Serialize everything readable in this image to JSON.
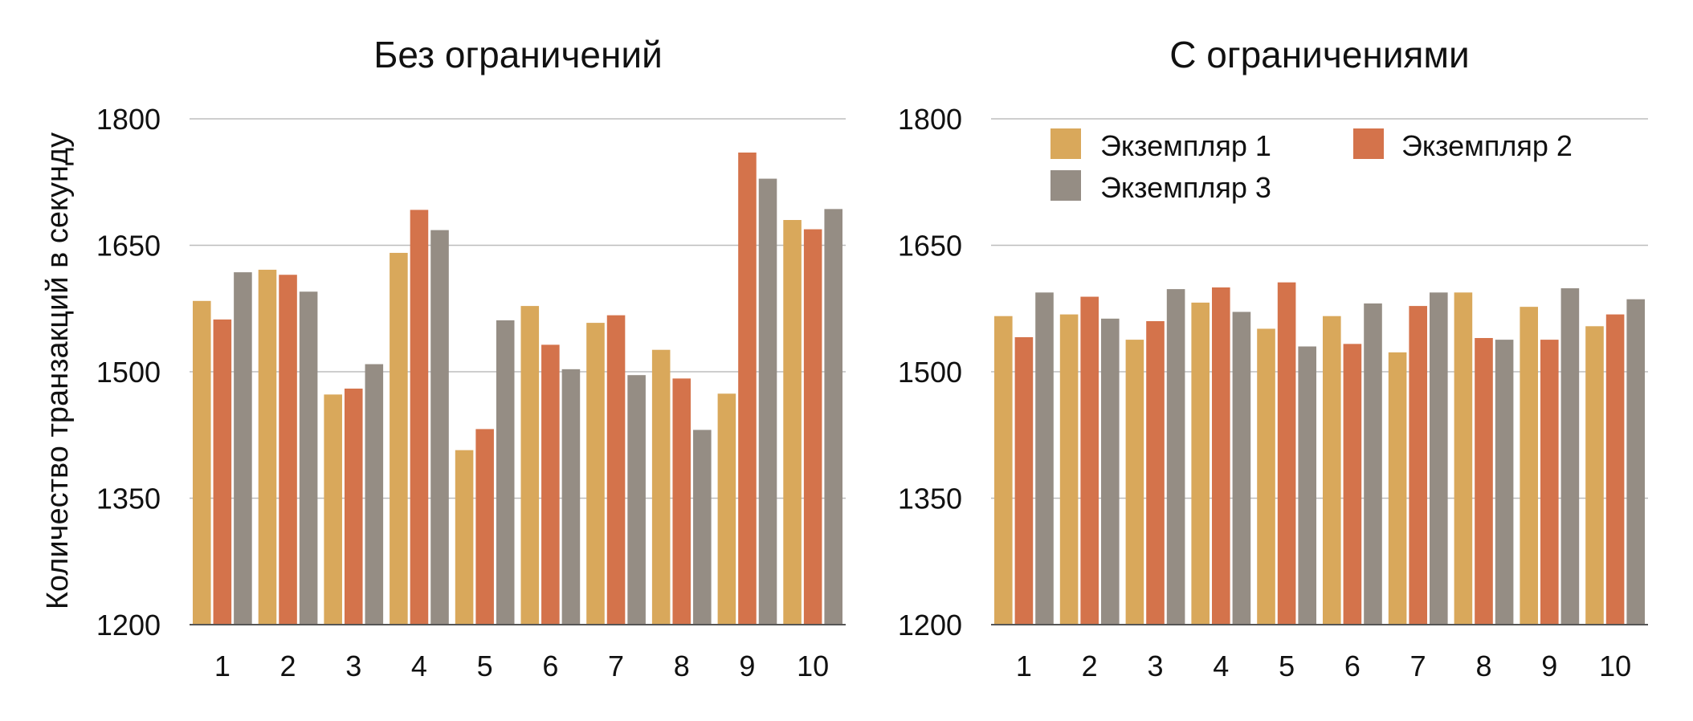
{
  "chart_data": [
    {
      "type": "bar",
      "title": "Без ограничений",
      "ylabel": "Количество транзакций в секунду",
      "xlabel": "",
      "ylim": [
        1200,
        1800
      ],
      "yticks": [
        1200,
        1350,
        1500,
        1650,
        1800
      ],
      "grid": true,
      "categories": [
        "1",
        "2",
        "3",
        "4",
        "5",
        "6",
        "7",
        "8",
        "9",
        "10"
      ],
      "series": [
        {
          "name": "Экземпляр 1",
          "color": "#D9A85B",
          "values": [
            1584,
            1621,
            1473,
            1641,
            1407,
            1578,
            1558,
            1526,
            1474,
            1680
          ]
        },
        {
          "name": "Экземпляр 2",
          "color": "#D4734B",
          "values": [
            1562,
            1615,
            1480,
            1692,
            1432,
            1532,
            1567,
            1492,
            1760,
            1669
          ]
        },
        {
          "name": "Экземпляр 3",
          "color": "#958D84",
          "values": [
            1618,
            1595,
            1509,
            1668,
            1561,
            1503,
            1496,
            1431,
            1729,
            1693
          ]
        }
      ]
    },
    {
      "type": "bar",
      "title": "С ограничениями",
      "ylabel": "",
      "xlabel": "",
      "ylim": [
        1200,
        1800
      ],
      "yticks": [
        1200,
        1350,
        1500,
        1650,
        1800
      ],
      "grid": true,
      "legend_position": "top",
      "categories": [
        "1",
        "2",
        "3",
        "4",
        "5",
        "6",
        "7",
        "8",
        "9",
        "10"
      ],
      "series": [
        {
          "name": "Экземпляр 1",
          "color": "#D9A85B",
          "values": [
            1566,
            1568,
            1538,
            1582,
            1551,
            1566,
            1523,
            1594,
            1577,
            1554
          ]
        },
        {
          "name": "Экземпляр 2",
          "color": "#D4734B",
          "values": [
            1541,
            1589,
            1560,
            1600,
            1606,
            1533,
            1578,
            1540,
            1538,
            1568
          ]
        },
        {
          "name": "Экземпляр 3",
          "color": "#958D84",
          "values": [
            1594,
            1563,
            1598,
            1571,
            1530,
            1581,
            1594,
            1538,
            1599,
            1586
          ]
        }
      ]
    }
  ]
}
